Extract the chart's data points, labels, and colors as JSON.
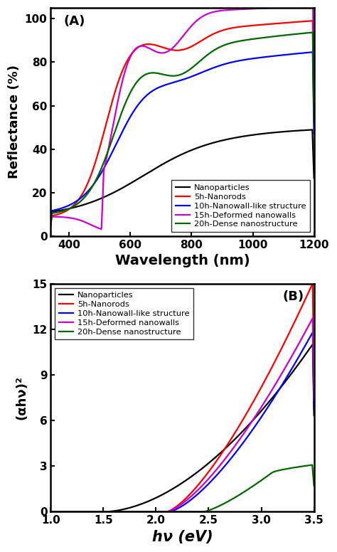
{
  "panel_A": {
    "title": "(A)",
    "xlabel": "Wavelength (nm)",
    "ylabel": "Reflectance (%)",
    "xlim": [
      340,
      1200
    ],
    "ylim": [
      0,
      105
    ],
    "yticks": [
      0,
      20,
      40,
      60,
      80,
      100
    ],
    "xticks": [
      400,
      600,
      800,
      1000,
      1200
    ]
  },
  "panel_B": {
    "title": "(B)",
    "xlabel": "hν (eV)",
    "ylabel": "(αhν)²",
    "xlim": [
      1.0,
      3.5
    ],
    "ylim": [
      0,
      15
    ],
    "yticks": [
      0,
      3,
      6,
      9,
      12,
      15
    ],
    "xticks": [
      1.0,
      1.5,
      2.0,
      2.5,
      3.0,
      3.5
    ]
  },
  "legend_labels": [
    "Nanoparticles",
    "5h-Nanorods",
    "10h-Nanowall-like structure",
    "15h-Deformed nanowalls",
    "20h-Dense nanostructure"
  ],
  "colors": [
    "#000000",
    "#ff0000",
    "#0000ff",
    "#cc00cc",
    "#006600"
  ]
}
